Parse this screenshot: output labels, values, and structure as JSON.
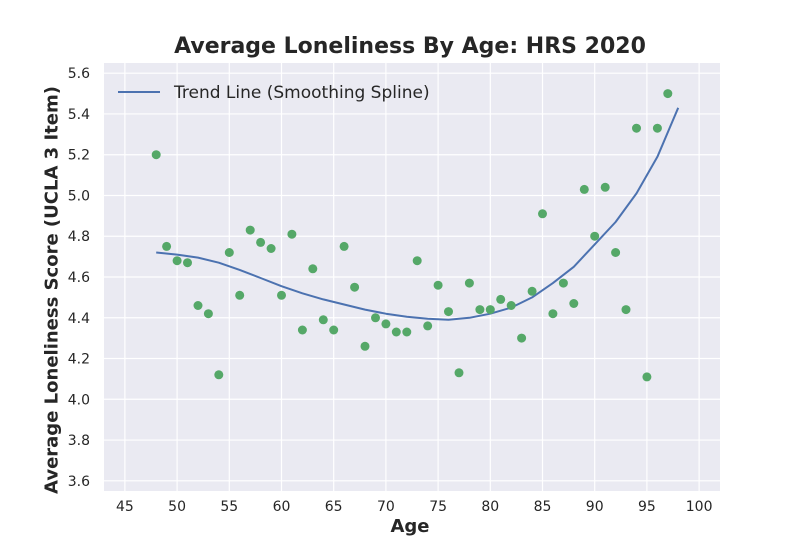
{
  "chart_data": {
    "type": "scatter",
    "title": "Average Loneliness By Age: HRS 2020",
    "xlabel": "Age",
    "ylabel": "Average Loneliness Score (UCLA 3 Item)",
    "xlim": [
      43,
      102
    ],
    "ylim": [
      3.55,
      5.65
    ],
    "x_ticks": [
      45,
      50,
      55,
      60,
      65,
      70,
      75,
      80,
      85,
      90,
      95,
      100
    ],
    "y_ticks": [
      3.6,
      3.8,
      4.0,
      4.2,
      4.4,
      4.6,
      4.8,
      5.0,
      5.2,
      5.4,
      5.6
    ],
    "grid": true,
    "legend_position": "top-left",
    "background_color": "#eaeaf2",
    "points": {
      "color": "#55a868",
      "x": [
        48,
        49,
        50,
        51,
        52,
        53,
        54,
        55,
        56,
        57,
        58,
        59,
        60,
        61,
        62,
        63,
        64,
        65,
        66,
        67,
        68,
        69,
        70,
        71,
        72,
        73,
        74,
        75,
        76,
        77,
        78,
        79,
        80,
        81,
        82,
        83,
        84,
        85,
        86,
        87,
        88,
        89,
        90,
        91,
        92,
        93,
        94,
        95,
        96,
        97
      ],
      "y": [
        5.2,
        4.75,
        4.68,
        4.67,
        4.46,
        4.42,
        4.12,
        4.72,
        4.51,
        4.83,
        4.77,
        4.74,
        4.51,
        4.81,
        4.34,
        4.64,
        4.39,
        4.34,
        4.75,
        4.55,
        4.26,
        4.4,
        4.37,
        4.33,
        4.33,
        4.68,
        4.36,
        4.56,
        4.43,
        4.13,
        4.57,
        4.44,
        4.44,
        4.49,
        4.46,
        4.3,
        4.53,
        4.91,
        4.42,
        4.57,
        4.47,
        5.03,
        4.8,
        5.04,
        4.72,
        4.44,
        5.33,
        4.11,
        5.33,
        5.5
      ]
    },
    "series": [
      {
        "name": "Trend Line (Smoothing Spline)",
        "color": "#4c72b0",
        "x": [
          48,
          50,
          52,
          54,
          56,
          58,
          60,
          62,
          64,
          66,
          68,
          70,
          72,
          74,
          76,
          78,
          80,
          82,
          84,
          86,
          88,
          90,
          92,
          94,
          96,
          98
        ],
        "y": [
          4.72,
          4.71,
          4.695,
          4.67,
          4.635,
          4.595,
          4.555,
          4.52,
          4.49,
          4.465,
          4.44,
          4.42,
          4.405,
          4.395,
          4.39,
          4.4,
          4.42,
          4.45,
          4.5,
          4.57,
          4.65,
          4.76,
          4.87,
          5.01,
          5.19,
          5.43
        ]
      }
    ]
  }
}
